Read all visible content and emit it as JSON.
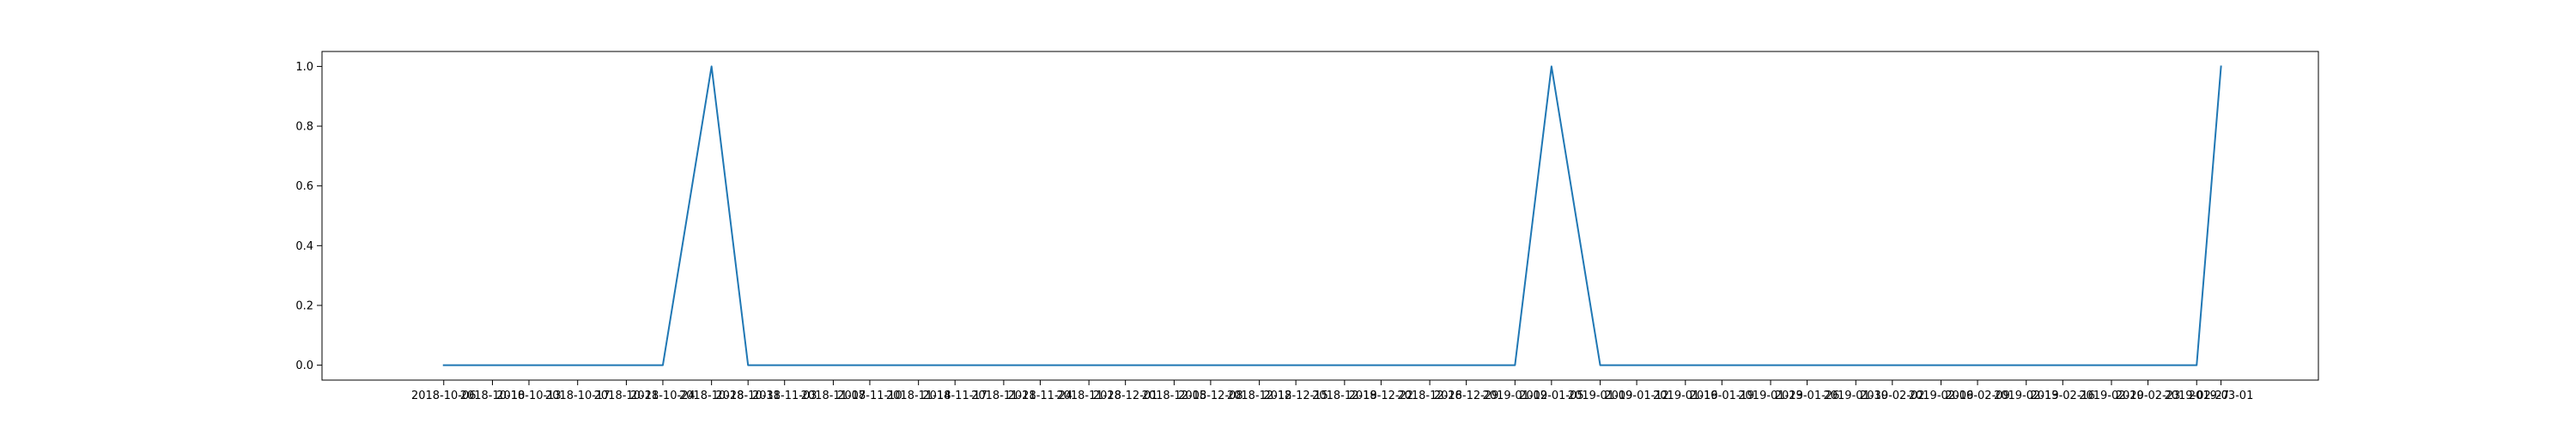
{
  "chart_data": {
    "type": "line",
    "title": "",
    "xlabel": "",
    "ylabel": "",
    "grid": false,
    "legend": "none",
    "ylim": [
      -0.05,
      1.05
    ],
    "xlim": [
      "2018-09-26",
      "2019-03-09"
    ],
    "x_ticks": [
      "2018-10-06",
      "2018-10-10",
      "2018-10-13",
      "2018-10-17",
      "2018-10-21",
      "2018-10-24",
      "2018-10-28",
      "2018-10-31",
      "2018-11-03",
      "2018-11-07",
      "2018-11-10",
      "2018-11-14",
      "2018-11-17",
      "2018-11-21",
      "2018-11-24",
      "2018-11-28",
      "2018-12-01",
      "2018-12-05",
      "2018-12-08",
      "2018-12-12",
      "2018-12-15",
      "2018-12-19",
      "2018-12-22",
      "2018-12-26",
      "2018-12-29",
      "2019-01-02",
      "2019-01-05",
      "2019-01-09",
      "2019-01-12",
      "2019-01-16",
      "2019-01-19",
      "2019-01-23",
      "2019-01-26",
      "2019-01-30",
      "2019-02-02",
      "2019-02-06",
      "2019-02-09",
      "2019-02-13",
      "2019-02-16",
      "2019-02-20",
      "2019-02-23",
      "2019-02-27",
      "2019-03-01"
    ],
    "x_tick_labels": [
      "2018-10-06",
      "2018-10-10",
      "2018-10-13",
      "2018-10-17",
      "2018-10-21",
      "2018-10-24",
      "2018-10-28",
      "2018-10-31",
      "2018-11-03",
      "2018-11-07",
      "2018-11-10",
      "2018-11-14",
      "2018-11-17",
      "2018-11-21",
      "2018-11-24",
      "2018-11-28",
      "2018-12-01",
      "2018-12-05",
      "2018-12-08",
      "2018-12-12",
      "2018-12-15",
      "2018-12-19",
      "2018-12-22",
      "2018-12-26",
      "2018-12-29",
      "2019-01-02",
      "2019-01-05",
      "2019-01-09",
      "2019-01-12",
      "2019-01-16",
      "2019-01-19",
      "2019-01-23",
      "2019-01-26",
      "2019-01-30",
      "2019-02-02",
      "2019-02-06",
      "2019-02-09",
      "2019-02-13",
      "2019-02-16",
      "2019-02-20",
      "2019-02-23",
      "2019-02-27",
      "2019-03-01"
    ],
    "y_ticks": [
      0.0,
      0.2,
      0.4,
      0.6,
      0.8,
      1.0
    ],
    "y_tick_labels": [
      "0.0",
      "0.2",
      "0.4",
      "0.6",
      "0.8",
      "1.0"
    ],
    "series": [
      {
        "color": "#1f77b4",
        "x": [
          "2018-10-06",
          "2018-10-24",
          "2018-10-28",
          "2018-10-31",
          "2019-01-02",
          "2019-01-05",
          "2019-01-09",
          "2019-02-27",
          "2019-03-01"
        ],
        "y": [
          0,
          0,
          1,
          0,
          0,
          1,
          0,
          0,
          1
        ]
      }
    ]
  }
}
